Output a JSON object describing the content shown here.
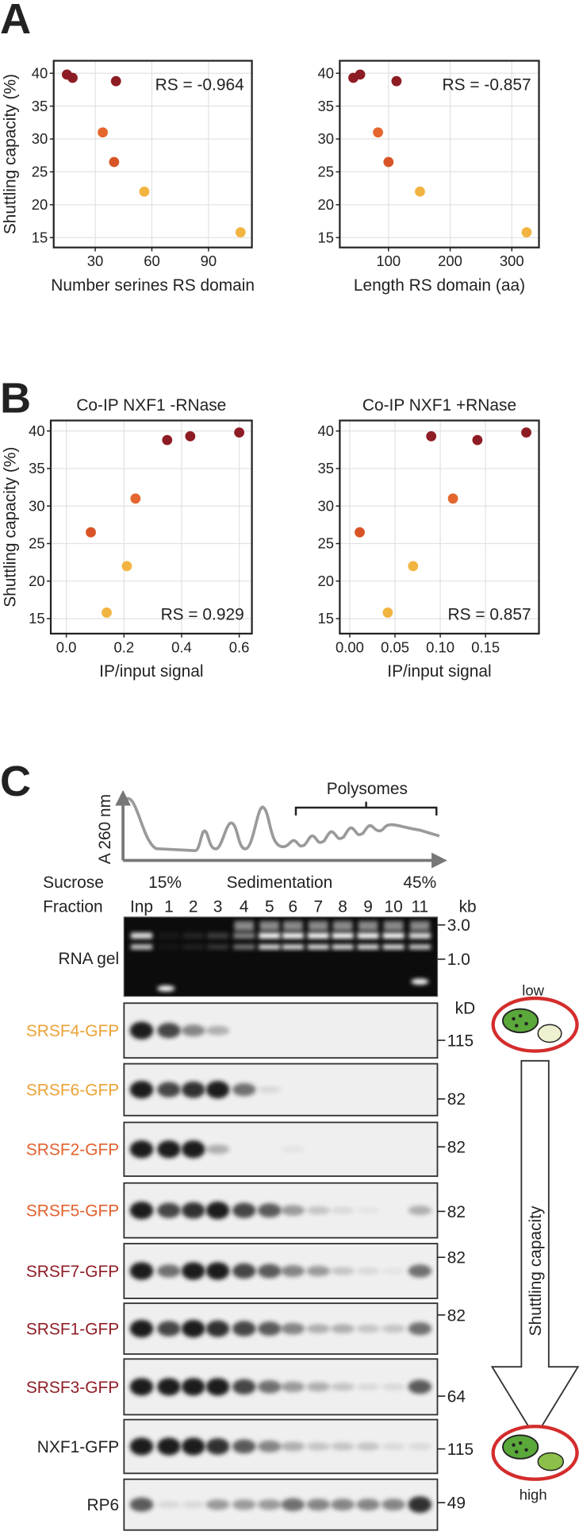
{
  "panel_labels": [
    "A",
    "B",
    "C"
  ],
  "chart_data": [
    {
      "type": "scatter",
      "x_label": "Number serines RS domain",
      "y_label": "Shuttling capacity (%)",
      "annotation": "RS = -0.964",
      "x": [
        15,
        18,
        41,
        34,
        40,
        56,
        107
      ],
      "values": [
        39.8,
        39.3,
        38.8,
        31,
        26.5,
        22,
        15.8
      ],
      "colors": [
        "#8e1c24",
        "#8e1c24",
        "#8e1c24",
        "#e4662e",
        "#d85427",
        "#f2b441",
        "#f2b441"
      ],
      "xlim": [
        8,
        113
      ],
      "ylim": [
        13.5,
        41.9
      ],
      "xticks": [
        30,
        60,
        90
      ],
      "yticks": [
        15,
        20,
        25,
        30,
        35,
        40
      ],
      "grid": true
    },
    {
      "type": "scatter",
      "x_label": "Length RS domain (aa)",
      "annotation": "RS = -0.857",
      "x": [
        54,
        43,
        113,
        83,
        100,
        151,
        324
      ],
      "values": [
        39.8,
        39.3,
        38.8,
        31,
        26.5,
        22,
        15.8
      ],
      "colors": [
        "#8e1c24",
        "#8e1c24",
        "#8e1c24",
        "#e4662e",
        "#d85427",
        "#f2b441",
        "#f2b441"
      ],
      "xlim": [
        21,
        344
      ],
      "ylim": [
        13.5,
        41.9
      ],
      "xticks": [
        100,
        200,
        300
      ],
      "yticks": [
        15,
        20,
        25,
        30,
        35,
        40
      ],
      "grid": true
    },
    {
      "type": "scatter",
      "title": "Co-IP NXF1 -RNase",
      "x_label": "IP/input signal",
      "y_label": "Shuttling capacity (%)",
      "annotation": "RS = 0.929",
      "x": [
        0.6,
        0.43,
        0.35,
        0.24,
        0.085,
        0.21,
        0.14
      ],
      "values": [
        39.8,
        39.3,
        38.8,
        31,
        26.5,
        22,
        15.8
      ],
      "colors": [
        "#8e1c24",
        "#8e1c24",
        "#8e1c24",
        "#e4662e",
        "#d85427",
        "#f2b441",
        "#f2b441"
      ],
      "xlim": [
        -0.054,
        0.644
      ],
      "ylim": [
        13,
        41.4
      ],
      "xticks": [
        {
          "value": 0,
          "label": "0.0"
        },
        0.2,
        0.4,
        0.6
      ],
      "yticks": [
        15,
        20,
        25,
        30,
        35,
        40
      ],
      "grid": true
    },
    {
      "type": "scatter",
      "title": "Co-IP NXF1 +RNase",
      "x_label": "IP/input signal",
      "annotation": "RS = 0.857",
      "x": [
        0.195,
        0.09,
        0.141,
        0.114,
        0.011,
        0.07,
        0.042
      ],
      "values": [
        39.8,
        39.3,
        38.8,
        31,
        26.5,
        22,
        15.8
      ],
      "colors": [
        "#8e1c24",
        "#8e1c24",
        "#8e1c24",
        "#e4662e",
        "#d85427",
        "#f2b441",
        "#f2b441"
      ],
      "xlim": [
        -0.011,
        0.209
      ],
      "ylim": [
        13,
        41.4
      ],
      "xticks": [
        {
          "value": 0,
          "label": "0.00"
        },
        0.05,
        {
          "value": 0.1,
          "label": "0.10"
        },
        0.15
      ],
      "yticks": [
        15,
        20,
        25,
        30,
        35,
        40
      ],
      "grid": true
    }
  ],
  "profile": {
    "y_label": "A 260 nm",
    "bracket_label": "Polysomes"
  },
  "gradient": {
    "label": "Sucrose",
    "start": "15%",
    "middle": "Sedimentation",
    "end": "45%"
  },
  "fraction": {
    "label": "Fraction",
    "lanes": [
      "Inp",
      "1",
      "2",
      "3",
      "4",
      "5",
      "6",
      "7",
      "8",
      "9",
      "10",
      "11"
    ]
  },
  "gel": {
    "label": "RNA gel",
    "unit": "kb",
    "markers": [
      "3.0",
      "1.0"
    ]
  },
  "blot_unit": "kD",
  "blots": [
    {
      "label": "SRSF4-GFP",
      "color": "#eba337",
      "marker": "115"
    },
    {
      "label": "SRSF6-GFP",
      "color": "#eba337",
      "marker": "82"
    },
    {
      "label": "SRSF2-GFP",
      "color": "#e2622f",
      "marker": "82"
    },
    {
      "label": "SRSF5-GFP",
      "color": "#e2622f",
      "marker": "82"
    },
    {
      "label": "SRSF7-GFP",
      "color": "#8f1d26",
      "marker": "82"
    },
    {
      "label": "SRSF1-GFP",
      "color": "#8f1d26",
      "marker": "82"
    },
    {
      "label": "SRSF3-GFP",
      "color": "#8f1d26",
      "marker": "64"
    },
    {
      "label": "NXF1-GFP",
      "color": "#222222",
      "marker": "115"
    },
    {
      "label": "RP6",
      "color": "#222222",
      "marker": "49"
    }
  ],
  "shuttling": {
    "label": "Shuttling capacity",
    "low": "low",
    "high": "high"
  }
}
